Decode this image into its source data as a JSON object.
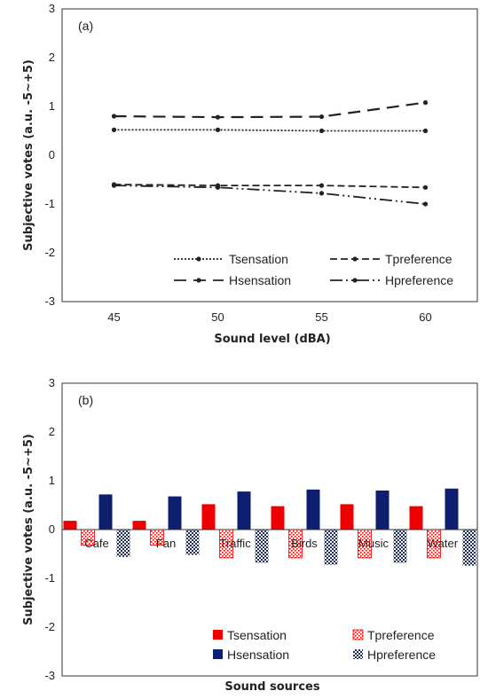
{
  "chart_data": [
    {
      "type": "line",
      "panel_label": "(a)",
      "xlabel": "Sound level (dBA)",
      "ylabel": "Subjective votes (a.u. -5~+5)",
      "categories": [
        "45",
        "50",
        "55",
        "60"
      ],
      "ylim": [
        -3,
        3
      ],
      "yticks": [
        "-3",
        "-2",
        "-1",
        "0",
        "1",
        "2",
        "3"
      ],
      "grid": false,
      "legend_position": "bottom-right",
      "series": [
        {
          "name": "Tsensation",
          "values": [
            0.52,
            0.52,
            0.5,
            0.5
          ],
          "dash": "2,2",
          "color": "#222222"
        },
        {
          "name": "Tpreference",
          "values": [
            -0.6,
            -0.62,
            -0.62,
            -0.66
          ],
          "dash": "8,4",
          "color": "#222222"
        },
        {
          "name": "Hsensation",
          "values": [
            0.8,
            0.78,
            0.79,
            1.08
          ],
          "dash": "14,8",
          "color": "#222222"
        },
        {
          "name": "Hpreference",
          "values": [
            -0.62,
            -0.66,
            -0.78,
            -1.0
          ],
          "dash": "14,4,2,4,2,4",
          "color": "#222222"
        }
      ]
    },
    {
      "type": "bar",
      "panel_label": "(b)",
      "xlabel": "Sound sources",
      "ylabel": "Subjective votes (a.u. -5~+5)",
      "categories": [
        "Cafe",
        "Fan",
        "Traffic",
        "Birds",
        "Music",
        "Water"
      ],
      "ylim": [
        -3,
        3
      ],
      "yticks": [
        "-3",
        "-2",
        "-1",
        "0",
        "1",
        "2",
        "3"
      ],
      "grid": false,
      "legend_position": "bottom-right",
      "series": [
        {
          "name": "Tsensation",
          "values": [
            0.18,
            0.18,
            0.52,
            0.48,
            0.52,
            0.48
          ],
          "fill": "#ee0000",
          "style": "solid"
        },
        {
          "name": "Tpreference",
          "values": [
            -0.32,
            -0.32,
            -0.58,
            -0.58,
            -0.58,
            -0.58
          ],
          "fill": "#ee0000",
          "style": "dots-open"
        },
        {
          "name": "Hsensation",
          "values": [
            0.72,
            0.68,
            0.78,
            0.82,
            0.8,
            0.84
          ],
          "fill": "#0d1f6e",
          "style": "solid"
        },
        {
          "name": "Hpreference",
          "values": [
            -0.56,
            -0.52,
            -0.68,
            -0.72,
            -0.68,
            -0.74
          ],
          "fill": "#1a2a5a",
          "style": "dots-filled"
        }
      ]
    }
  ]
}
